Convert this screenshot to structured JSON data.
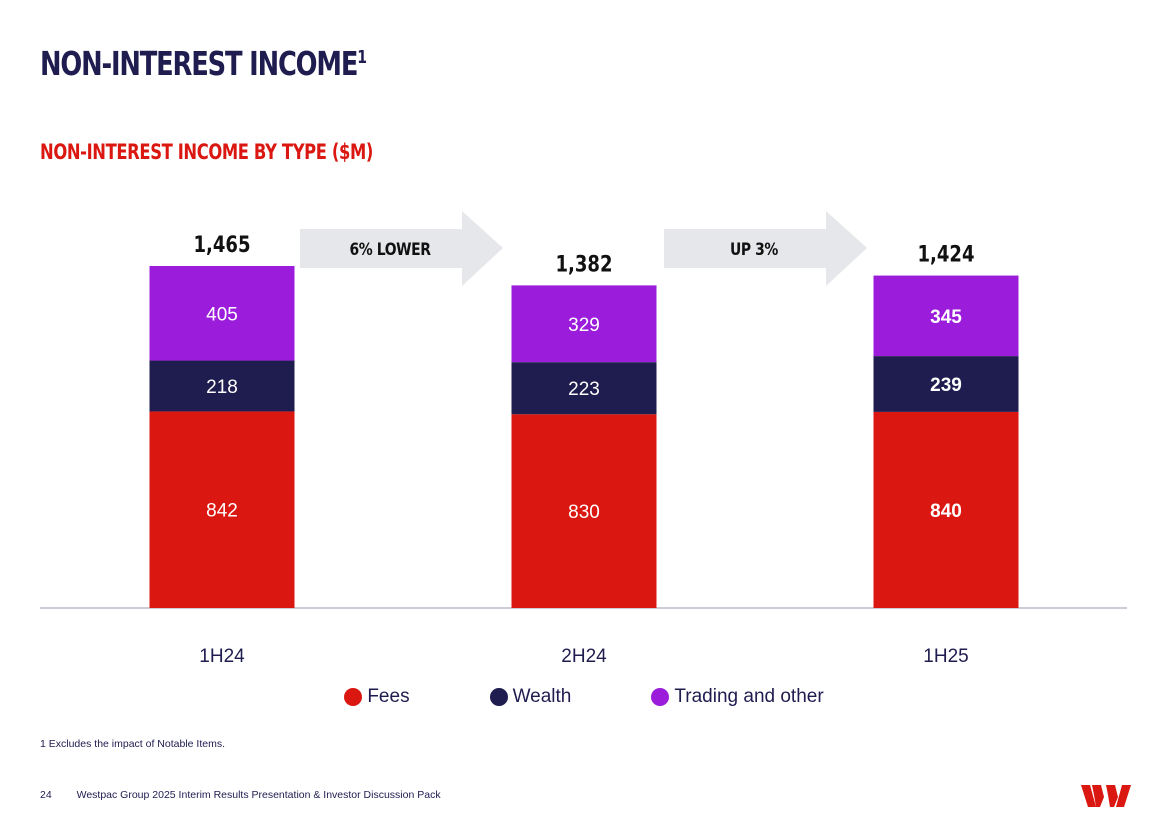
{
  "page": {
    "title": "NON-INTEREST INCOME",
    "title_sup": "1",
    "footnote": "1 Excludes the impact of Notable Items.",
    "page_number": "24",
    "footer_text": "Westpac Group 2025 Interim Results Presentation & Investor Discussion Pack",
    "logo_icon": "westpac-w-logo"
  },
  "colors": {
    "fees": "#da1710",
    "wealth": "#1f1c4f",
    "trading": "#9b1ddb",
    "arrow": "#e6e7ea"
  },
  "chart_data": {
    "type": "bar",
    "stacked": true,
    "title": "NON-INTEREST INCOME BY TYPE ($M)",
    "categories": [
      "1H24",
      "2H24",
      "1H25"
    ],
    "series": [
      {
        "name": "Fees",
        "values": [
          842,
          830,
          840
        ]
      },
      {
        "name": "Wealth",
        "values": [
          218,
          223,
          239
        ]
      },
      {
        "name": "Trading and other",
        "values": [
          405,
          329,
          345
        ]
      }
    ],
    "totals": [
      "1,465",
      "1,382",
      "1,424"
    ],
    "annotations": [
      "6% LOWER",
      "UP 3%"
    ],
    "legend_position": "bottom-center",
    "ylim": [
      0,
      1465
    ]
  }
}
